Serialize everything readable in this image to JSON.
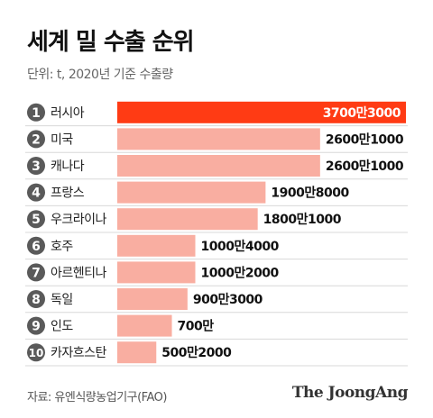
{
  "chart_data": {
    "type": "bar",
    "orientation": "horizontal",
    "title": "세계 밀 수출 순위",
    "subtitle": "단위: t, 2020년 기준 수출량",
    "categories": [
      "러시아",
      "미국",
      "캐나다",
      "프랑스",
      "우크라이나",
      "호주",
      "아르헨티나",
      "독일",
      "인도",
      "카자흐스탄"
    ],
    "ranks": [
      "1",
      "2",
      "3",
      "4",
      "5",
      "6",
      "7",
      "8",
      "9",
      "10"
    ],
    "values": [
      37003000,
      26001000,
      26001000,
      19008000,
      18001000,
      10004000,
      10002000,
      9003000,
      7000000,
      5002000
    ],
    "value_labels": [
      "3700만3000",
      "2600만1000",
      "2600만1000",
      "1900만8000",
      "1800만1000",
      "1000만4000",
      "1000만2000",
      "900만3000",
      "700만",
      "500만2000"
    ],
    "xlim": [
      0,
      37003000
    ],
    "grid": false,
    "colors": {
      "highlight": "#ff3b14",
      "bar": "#f9aea1",
      "badge": "#5a5a5a",
      "row_line": "#d8d8d8"
    }
  },
  "footer": {
    "source": "자료: 유엔식량농업기구(FAO)",
    "brand": "The JoongAng"
  }
}
